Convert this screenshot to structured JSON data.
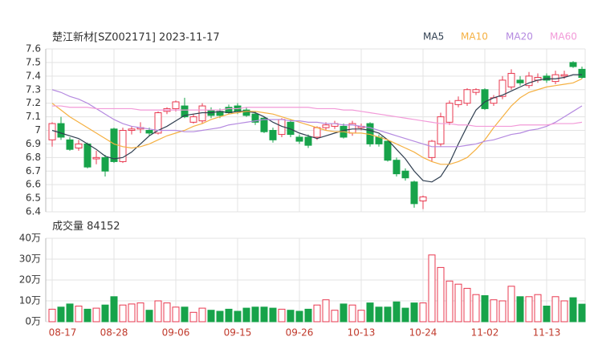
{
  "chart_data": [
    {
      "type": "candlestick",
      "title": "楚江新材[SZ002171] 2023-11-17",
      "ylim": [
        6.4,
        7.6
      ],
      "yticks": [
        7.6,
        7.5,
        7.4,
        7.3,
        7.2,
        7.1,
        7,
        6.9,
        6.8,
        6.7,
        6.6,
        6.5,
        6.4
      ],
      "grid": true,
      "up_color": "#e8384f",
      "down_color": "#17a34a",
      "open": [
        6.93,
        7.05,
        6.93,
        6.87,
        6.9,
        6.79,
        6.8,
        7.01,
        6.77,
        7.0,
        7.01,
        7.0,
        6.98,
        7.14,
        7.16,
        7.18,
        7.06,
        7.07,
        7.15,
        7.14,
        7.17,
        7.18,
        7.15,
        7.12,
        7.09,
        7.0,
        6.97,
        7.06,
        6.95,
        6.95,
        6.95,
        7.02,
        7.03,
        7.03,
        6.98,
        7.02,
        7.05,
        6.95,
        6.92,
        6.78,
        6.7,
        6.62,
        6.48,
        6.8,
        6.9,
        7.06,
        7.19,
        7.2,
        7.28,
        7.3,
        7.2,
        7.25,
        7.32,
        7.37,
        7.33,
        7.37,
        7.4,
        7.36,
        7.4,
        7.5,
        7.45
      ],
      "high": [
        7.06,
        7.1,
        6.95,
        6.93,
        6.91,
        6.85,
        6.82,
        7.02,
        7.02,
        7.03,
        7.06,
        7.02,
        7.14,
        7.17,
        7.22,
        7.24,
        7.12,
        7.2,
        7.17,
        7.16,
        7.19,
        7.2,
        7.17,
        7.14,
        7.1,
        7.02,
        7.09,
        7.08,
        6.97,
        6.97,
        7.03,
        7.06,
        7.07,
        7.05,
        7.07,
        7.05,
        7.06,
        6.97,
        6.93,
        6.8,
        6.72,
        6.63,
        6.52,
        6.93,
        7.13,
        7.22,
        7.25,
        7.31,
        7.31,
        7.31,
        7.26,
        7.4,
        7.45,
        7.4,
        7.43,
        7.42,
        7.42,
        7.44,
        7.44,
        7.51,
        7.47
      ],
      "low": [
        6.88,
        6.93,
        6.85,
        6.85,
        6.72,
        6.75,
        6.66,
        6.76,
        6.76,
        6.97,
        6.98,
        6.96,
        6.97,
        7.12,
        7.14,
        7.09,
        7.05,
        7.05,
        7.09,
        7.09,
        7.12,
        7.12,
        7.1,
        7.04,
        6.98,
        6.91,
        6.95,
        6.95,
        6.9,
        6.87,
        6.93,
        7.0,
        7.01,
        6.94,
        6.96,
        7.0,
        6.88,
        6.88,
        6.77,
        6.66,
        6.63,
        6.43,
        6.42,
        6.77,
        6.88,
        7.04,
        7.17,
        7.18,
        7.26,
        7.15,
        7.18,
        7.23,
        7.3,
        7.33,
        7.31,
        7.35,
        7.35,
        7.34,
        7.38,
        7.46,
        7.38
      ],
      "close": [
        7.05,
        6.95,
        6.86,
        6.9,
        6.73,
        6.8,
        6.7,
        6.77,
        7.0,
        7.01,
        7.02,
        6.98,
        7.13,
        7.16,
        7.21,
        7.1,
        7.1,
        7.18,
        7.11,
        7.11,
        7.13,
        7.14,
        7.11,
        7.06,
        6.99,
        6.93,
        7.08,
        6.97,
        6.92,
        6.89,
        7.02,
        7.04,
        7.05,
        6.95,
        7.05,
        7.03,
        6.9,
        6.9,
        6.78,
        6.68,
        6.65,
        6.46,
        6.51,
        6.92,
        7.1,
        7.2,
        7.22,
        7.3,
        7.3,
        7.16,
        7.24,
        7.37,
        7.42,
        7.35,
        7.4,
        7.39,
        7.37,
        7.41,
        7.41,
        7.47,
        7.39
      ],
      "legend": "top-right",
      "series": [
        {
          "name": "MA5",
          "color": "#2f3e50",
          "values": [
            7.0,
            6.98,
            6.96,
            6.94,
            6.9,
            6.86,
            6.81,
            6.79,
            6.8,
            6.84,
            6.9,
            6.96,
            7.0,
            7.03,
            7.07,
            7.11,
            7.12,
            7.13,
            7.13,
            7.14,
            7.13,
            7.14,
            7.14,
            7.13,
            7.1,
            7.06,
            7.03,
            7.01,
            6.98,
            6.96,
            6.94,
            6.96,
            6.98,
            7.0,
            7.01,
            7.01,
            7.0,
            6.98,
            6.93,
            6.86,
            6.79,
            6.7,
            6.63,
            6.62,
            6.66,
            6.76,
            6.9,
            7.03,
            7.15,
            7.21,
            7.24,
            7.26,
            7.29,
            7.32,
            7.35,
            7.37,
            7.38,
            7.38,
            7.39,
            7.41,
            7.41
          ]
        },
        {
          "name": "MA10",
          "color": "#f5b041",
          "values": [
            7.2,
            7.15,
            7.1,
            7.06,
            7.02,
            6.98,
            6.94,
            6.9,
            6.88,
            6.87,
            6.88,
            6.9,
            6.93,
            6.96,
            6.98,
            7.0,
            7.03,
            7.05,
            7.08,
            7.1,
            7.12,
            7.13,
            7.14,
            7.14,
            7.13,
            7.12,
            7.1,
            7.08,
            7.06,
            7.04,
            7.02,
            7.0,
            6.99,
            6.99,
            6.98,
            6.98,
            6.97,
            6.95,
            6.93,
            6.9,
            6.87,
            6.84,
            6.8,
            6.77,
            6.75,
            6.75,
            6.77,
            6.8,
            6.86,
            6.93,
            7.02,
            7.1,
            7.18,
            7.24,
            7.28,
            7.3,
            7.32,
            7.33,
            7.34,
            7.35,
            7.38
          ]
        },
        {
          "name": "MA20",
          "color": "#b58ae0",
          "values": [
            7.3,
            7.28,
            7.25,
            7.23,
            7.2,
            7.16,
            7.12,
            7.08,
            7.05,
            7.03,
            7.02,
            7.01,
            7.0,
            7.0,
            7.0,
            6.99,
            6.99,
            7.0,
            7.01,
            7.02,
            7.04,
            7.05,
            7.06,
            7.07,
            7.08,
            7.08,
            7.08,
            7.07,
            7.07,
            7.06,
            7.06,
            7.05,
            7.05,
            7.04,
            7.04,
            7.03,
            7.02,
            7.0,
            6.98,
            6.96,
            6.94,
            6.92,
            6.9,
            6.88,
            6.88,
            6.88,
            6.88,
            6.89,
            6.9,
            6.92,
            6.93,
            6.95,
            6.97,
            6.98,
            7.0,
            7.01,
            7.03,
            7.06,
            7.1,
            7.14,
            7.18
          ]
        },
        {
          "name": "MA60",
          "color": "#f29ad8",
          "values": [
            7.18,
            7.18,
            7.17,
            7.17,
            7.17,
            7.16,
            7.16,
            7.16,
            7.16,
            7.16,
            7.15,
            7.15,
            7.15,
            7.15,
            7.15,
            7.15,
            7.15,
            7.15,
            7.15,
            7.15,
            7.16,
            7.16,
            7.17,
            7.17,
            7.17,
            7.17,
            7.17,
            7.17,
            7.17,
            7.17,
            7.16,
            7.16,
            7.16,
            7.15,
            7.15,
            7.14,
            7.13,
            7.12,
            7.11,
            7.1,
            7.09,
            7.08,
            7.07,
            7.06,
            7.05,
            7.05,
            7.04,
            7.04,
            7.03,
            7.03,
            7.03,
            7.03,
            7.03,
            7.04,
            7.04,
            7.04,
            7.04,
            7.05,
            7.05,
            7.05,
            7.06
          ]
        }
      ]
    },
    {
      "type": "bar",
      "title": "成交量",
      "categories": [
        "08-17",
        null,
        null,
        null,
        null,
        null,
        null,
        "08-28",
        null,
        null,
        null,
        null,
        null,
        null,
        "09-06",
        null,
        null,
        null,
        null,
        null,
        null,
        "09-15",
        null,
        null,
        null,
        null,
        null,
        null,
        "09-26",
        null,
        null,
        null,
        null,
        null,
        null,
        "10-13",
        null,
        null,
        null,
        null,
        null,
        null,
        "10-24",
        null,
        null,
        null,
        null,
        null,
        null,
        "11-02",
        null,
        null,
        null,
        null,
        null,
        null,
        "11-13",
        null,
        null,
        null,
        null
      ],
      "values": [
        60000,
        70000,
        85000,
        75000,
        60000,
        65000,
        80000,
        120000,
        80000,
        85000,
        90000,
        55000,
        100000,
        90000,
        70000,
        70000,
        45000,
        65000,
        55000,
        50000,
        60000,
        50000,
        65000,
        70000,
        70000,
        65000,
        60000,
        55000,
        50000,
        60000,
        80000,
        105000,
        55000,
        85000,
        80000,
        55000,
        90000,
        70000,
        70000,
        95000,
        65000,
        90000,
        90000,
        320000,
        260000,
        195000,
        180000,
        160000,
        130000,
        125000,
        105000,
        100000,
        170000,
        120000,
        120000,
        130000,
        75000,
        120000,
        100000,
        115000,
        84152
      ],
      "ylim": [
        0,
        400000
      ],
      "yticks": [
        {
          "value": 400000,
          "label": "40万"
        },
        {
          "value": 300000,
          "label": "30万"
        },
        {
          "value": 200000,
          "label": "20万"
        },
        {
          "value": 100000,
          "label": "10万"
        },
        {
          "value": 0,
          "label": "0万"
        }
      ],
      "grid": true
    }
  ]
}
